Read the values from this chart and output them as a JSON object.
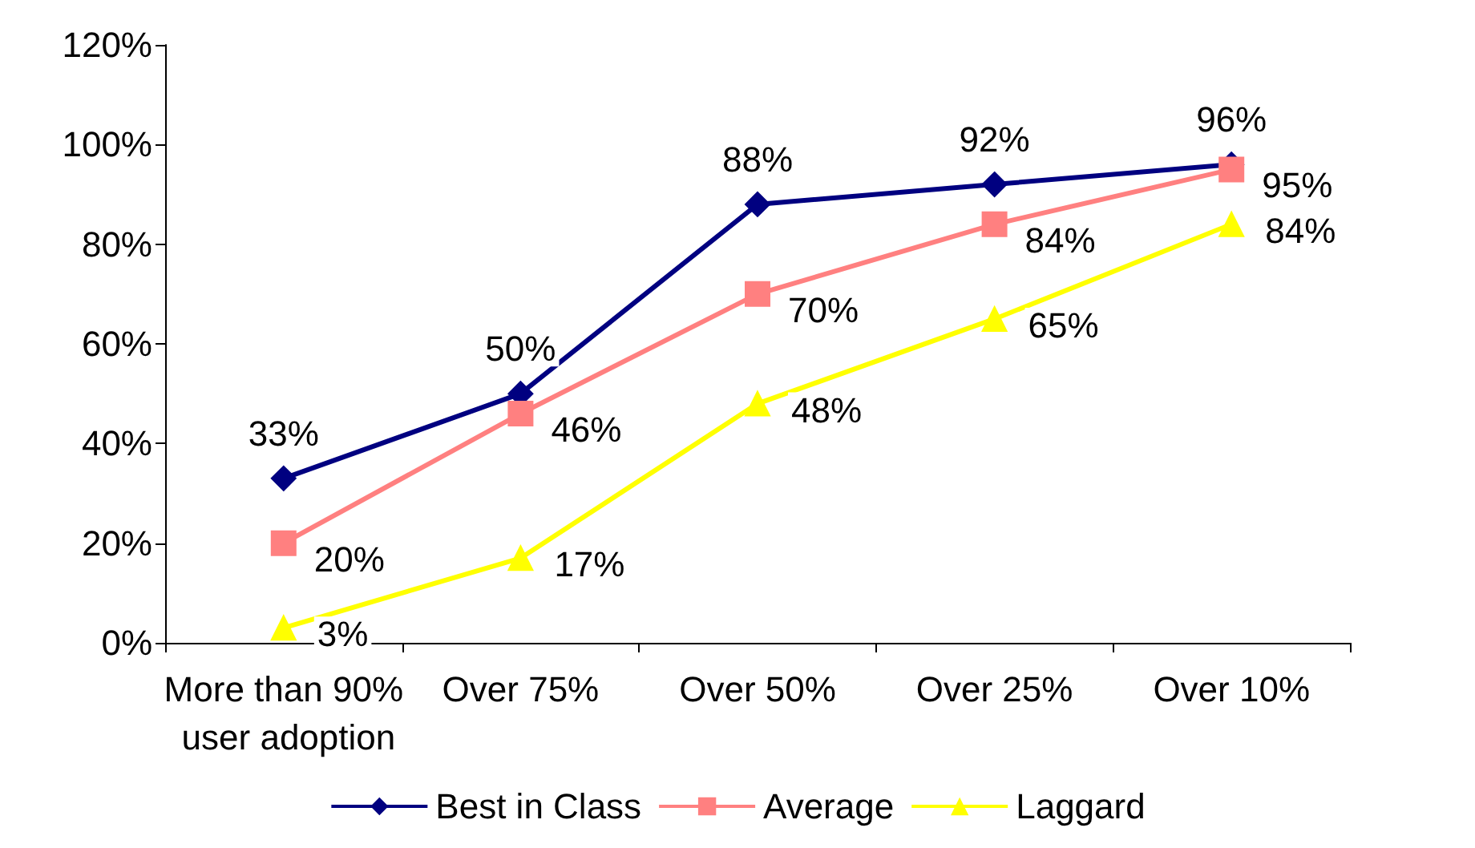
{
  "chart_data": {
    "type": "line",
    "categories": [
      "More than 90% user adoption",
      "Over 75%",
      "Over 50%",
      "Over 25%",
      "Over 10%"
    ],
    "series": [
      {
        "name": "Best in Class",
        "color": "#000080",
        "marker": "diamond",
        "values": [
          33,
          50,
          88,
          92,
          96
        ],
        "value_labels": [
          "33%",
          "50%",
          "88%",
          "92%",
          "96%"
        ]
      },
      {
        "name": "Average",
        "color": "#ff8080",
        "marker": "square",
        "values": [
          20,
          46,
          70,
          84,
          95
        ],
        "value_labels": [
          "20%",
          "46%",
          "70%",
          "84%",
          "95%"
        ]
      },
      {
        "name": "Laggard",
        "color": "#ffff00",
        "marker": "triangle",
        "values": [
          3,
          17,
          48,
          65,
          84
        ],
        "value_labels": [
          "3%",
          "17%",
          "48%",
          "65%",
          "84%"
        ]
      }
    ],
    "ylim": [
      0,
      120
    ],
    "yticks": [
      {
        "value": 0,
        "label": "0%"
      },
      {
        "value": 20,
        "label": "20%"
      },
      {
        "value": 40,
        "label": "40%"
      },
      {
        "value": 60,
        "label": "60%"
      },
      {
        "value": 80,
        "label": "80%"
      },
      {
        "value": 100,
        "label": "100%"
      },
      {
        "value": 120,
        "label": "120%"
      }
    ],
    "grid": false,
    "legend": "bottom",
    "line_style": "solid"
  }
}
